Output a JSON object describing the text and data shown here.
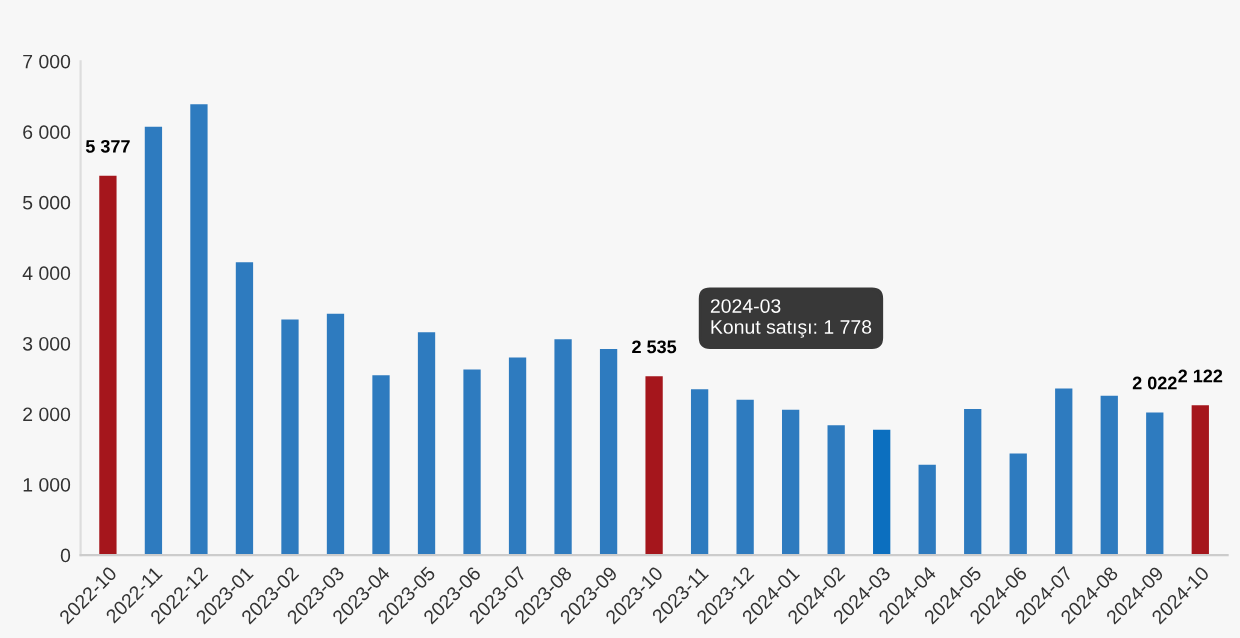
{
  "chart_data": {
    "type": "bar",
    "categories": [
      "2022-10",
      "2022-11",
      "2022-12",
      "2023-01",
      "2023-02",
      "2023-03",
      "2023-04",
      "2023-05",
      "2023-06",
      "2023-07",
      "2023-08",
      "2023-09",
      "2023-10",
      "2023-11",
      "2023-12",
      "2024-01",
      "2024-02",
      "2024-03",
      "2024-04",
      "2024-05",
      "2024-06",
      "2024-07",
      "2024-08",
      "2024-09",
      "2024-10"
    ],
    "values": [
      5377,
      6070,
      6390,
      4150,
      3340,
      3420,
      2550,
      3160,
      2630,
      2800,
      3060,
      2920,
      2535,
      2350,
      2200,
      2060,
      1840,
      1778,
      1280,
      2070,
      1440,
      2360,
      2260,
      2022,
      2122
    ],
    "colors": [
      "#a5161c",
      "#2e7bbf",
      "#2e7bbf",
      "#2e7bbf",
      "#2e7bbf",
      "#2e7bbf",
      "#2e7bbf",
      "#2e7bbf",
      "#2e7bbf",
      "#2e7bbf",
      "#2e7bbf",
      "#2e7bbf",
      "#a5161c",
      "#2e7bbf",
      "#2e7bbf",
      "#2e7bbf",
      "#2e7bbf",
      "#0c6fbf",
      "#2e7bbf",
      "#2e7bbf",
      "#2e7bbf",
      "#2e7bbf",
      "#2e7bbf",
      "#2e7bbf",
      "#a5161c"
    ],
    "value_labels": [
      "5 377",
      null,
      null,
      null,
      null,
      null,
      null,
      null,
      null,
      null,
      null,
      null,
      "2 535",
      null,
      null,
      null,
      null,
      null,
      null,
      null,
      null,
      null,
      null,
      "2 022",
      "2 122"
    ],
    "ylim": [
      0,
      7000
    ],
    "yticks": [
      {
        "value": 0,
        "label": "0"
      },
      {
        "value": 1000,
        "label": "1 000"
      },
      {
        "value": 2000,
        "label": "2 000"
      },
      {
        "value": 3000,
        "label": "3 000"
      },
      {
        "value": 4000,
        "label": "4 000"
      },
      {
        "value": 5000,
        "label": "5 000"
      },
      {
        "value": 6000,
        "label": "6 000"
      },
      {
        "value": 7000,
        "label": "7 000"
      }
    ],
    "grid": false,
    "annotations": [
      "2024-03\nKonut satışı: 1 778"
    ]
  }
}
